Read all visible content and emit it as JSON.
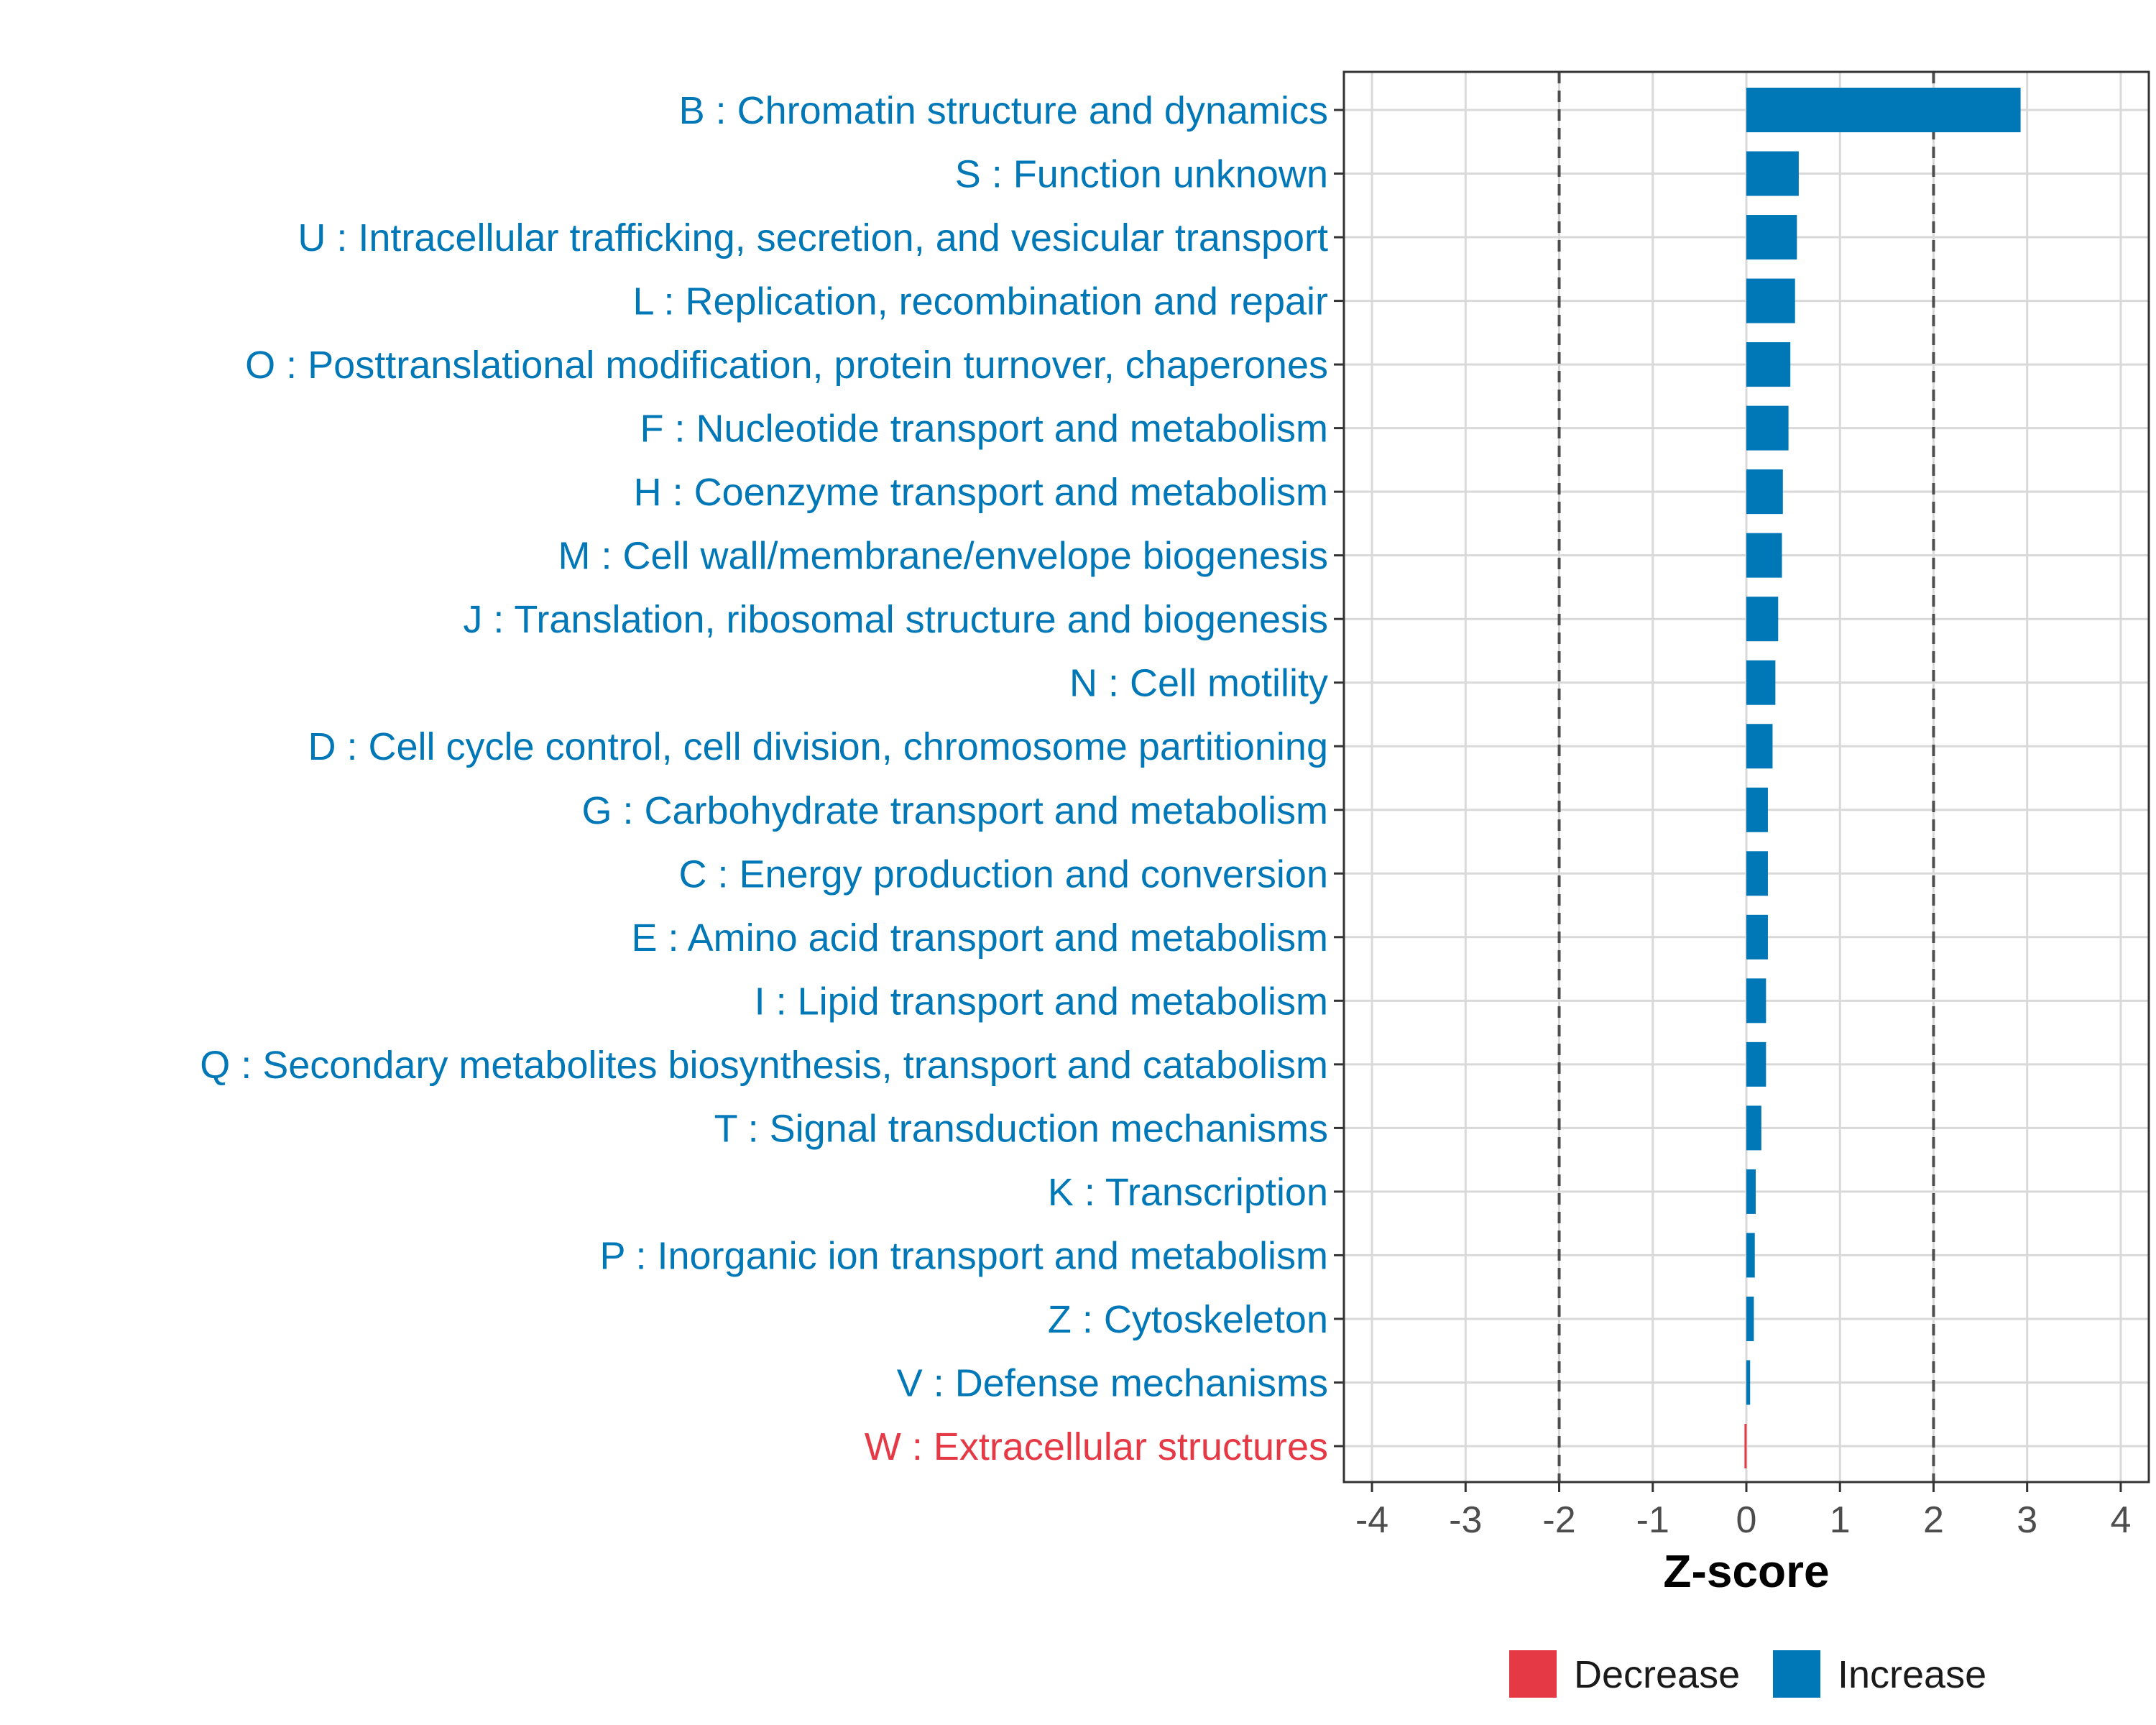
{
  "chart_data": {
    "type": "bar",
    "orientation": "horizontal",
    "xlabel": "Z-score",
    "xlim": [
      -4.3,
      4.3
    ],
    "xticks": [
      -4,
      -3,
      -2,
      -1,
      0,
      1,
      2,
      3,
      4
    ],
    "xtick_labels": [
      "-4",
      "-3",
      "-2",
      "-1",
      "0",
      "1",
      "2",
      "3",
      "4"
    ],
    "threshold_lines": [
      -2,
      2
    ],
    "categories": [
      "B : Chromatin structure and dynamics",
      "S : Function unknown",
      "U : Intracellular trafficking, secretion, and vesicular transport",
      "L : Replication, recombination and repair",
      "O : Posttranslational modification, protein turnover, chaperones",
      "F : Nucleotide transport and metabolism",
      "H : Coenzyme transport and metabolism",
      "M : Cell wall/membrane/envelope biogenesis",
      "J : Translation, ribosomal structure and biogenesis",
      "N : Cell motility",
      "D : Cell cycle control, cell division, chromosome partitioning",
      "G : Carbohydrate transport and metabolism",
      "C : Energy production and conversion",
      "E : Amino acid transport and metabolism",
      "I : Lipid transport and metabolism",
      "Q : Secondary metabolites biosynthesis, transport and catabolism",
      "T : Signal transduction mechanisms",
      "K : Transcription",
      "P : Inorganic ion transport and metabolism",
      "Z : Cytoskeleton",
      "V : Defense mechanisms",
      "W : Extracellular structures"
    ],
    "values": [
      2.93,
      0.56,
      0.54,
      0.52,
      0.47,
      0.45,
      0.39,
      0.38,
      0.34,
      0.31,
      0.28,
      0.23,
      0.23,
      0.23,
      0.21,
      0.21,
      0.16,
      0.1,
      0.09,
      0.08,
      0.04,
      -0.02
    ],
    "direction": [
      "Increase",
      "Increase",
      "Increase",
      "Increase",
      "Increase",
      "Increase",
      "Increase",
      "Increase",
      "Increase",
      "Increase",
      "Increase",
      "Increase",
      "Increase",
      "Increase",
      "Increase",
      "Increase",
      "Increase",
      "Increase",
      "Increase",
      "Increase",
      "Increase",
      "Decrease"
    ],
    "legend": [
      {
        "label": "Decrease",
        "color": "#e63946"
      },
      {
        "label": "Increase",
        "color": "#0077b6"
      }
    ],
    "legend_position": "bottom",
    "grid": true
  },
  "colors": {
    "increase": "#0077b6",
    "decrease": "#e63946",
    "grid": "#d9d9d9",
    "panel_border": "#333333",
    "threshold_line": "#4d4d4d",
    "tick_text": "#4d4d4d"
  }
}
